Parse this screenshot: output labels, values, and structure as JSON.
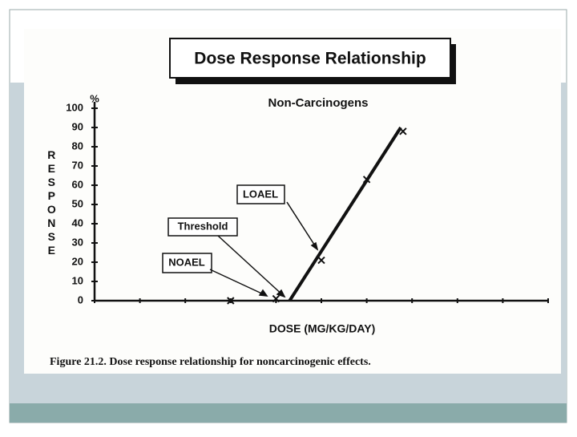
{
  "chart_data": {
    "type": "line",
    "title": "Dose Response Relationship",
    "subtitle": "Non-Carcinogens",
    "y_unit": "%",
    "y_label": "RESPONSE",
    "x_label": "DOSE (MG/KG/DAY)",
    "caption": "Figure 21.2. Dose response relationship for noncarcinogenic effects.",
    "annotations": [
      "NOAEL",
      "Threshold",
      "LOAEL"
    ],
    "xlim": [
      0,
      10
    ],
    "xticks": [
      0,
      1,
      2,
      3,
      4,
      5,
      6,
      7,
      8,
      9,
      10
    ],
    "ylim": [
      0,
      100
    ],
    "yticks": [
      0,
      10,
      20,
      30,
      40,
      50,
      60,
      70,
      80,
      90,
      100
    ],
    "series": [
      {
        "color": "#111111",
        "x": [
          4.3,
          6.75
        ],
        "values": [
          0,
          90
        ]
      },
      {
        "color": "#111111",
        "marker": "x",
        "x": [
          3,
          4,
          5,
          6,
          6.8
        ],
        "values": [
          0,
          1,
          21,
          63,
          88
        ]
      }
    ]
  }
}
